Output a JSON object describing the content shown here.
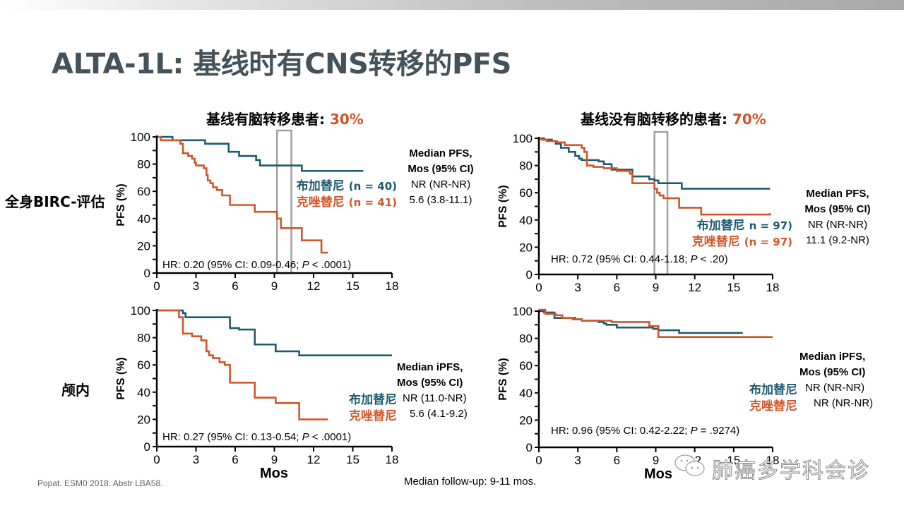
{
  "slide": {
    "title": "ALTA-1L: 基线时有CNS转移的PFS",
    "row_labels": [
      "全身BIRC-评估",
      "颅内"
    ],
    "footer_reference": "Popat. ESM0 2018. Abstr LBA58.",
    "footer_followup": "Median follow-up: 9-11 mos.",
    "watermark": "肺癌多学科会诊",
    "colors": {
      "brigatinib": "#1c5a6e",
      "crizotinib": "#d0562a",
      "highlight_box": "#a0a0a0",
      "title": "#44525c"
    }
  },
  "panels": [
    {
      "title": "基线有脑转移患者: ",
      "title_pct": "30%",
      "median_header": [
        "Median PFS,",
        "Mos (95% CI)"
      ],
      "median_values": [
        "NR (NR-NR)",
        "5.6 (3.8-11.1)"
      ],
      "legend": [
        {
          "name": "布加替尼",
          "n": "(n = 40)"
        },
        {
          "name": "克唑替尼",
          "n": "(n = 41)"
        }
      ],
      "hr_text": {
        "pre": "HR: 0.20 (95% CI: 0.09-0.46; ",
        "p": "P",
        "post": " < .0001)"
      }
    },
    {
      "title": "基线没有脑转移的患者: ",
      "title_pct": "70%",
      "median_header": [
        "Median PFS,",
        "Mos (95% CI)"
      ],
      "median_values": [
        "NR (NR-NR)",
        "11.1 (9.2-NR)"
      ],
      "legend": [
        {
          "name": "布加替尼",
          "n": "n = 97)"
        },
        {
          "name": "克唑替尼",
          "n": "(n = 97)"
        }
      ],
      "hr_text": {
        "pre": "HR: 0.72 (95% CI: 0.44-1.18; ",
        "p": "P",
        "post": " < .20)"
      }
    },
    {
      "title": "",
      "title_pct": "",
      "median_header": [
        "Median iPFS,",
        "Mos (95% CI)"
      ],
      "median_values": [
        "NR (11.0-NR)",
        "5.6 (4.1-9.2)"
      ],
      "legend": [
        {
          "name": "布加替尼",
          "n": ""
        },
        {
          "name": "克唑替尼",
          "n": ""
        }
      ],
      "hr_text": {
        "pre": "HR: 0.27 (95% CI: 0.13-0.54; ",
        "p": "P",
        "post": " < .0001)"
      }
    },
    {
      "title": "",
      "title_pct": "",
      "median_header": [
        "Median iPFS,",
        "Mos (95% CI)"
      ],
      "median_values": [
        "NR (NR-NR)",
        "NR (NR-NR)"
      ],
      "legend": [
        {
          "name": "布加替尼",
          "n": ""
        },
        {
          "name": "克唑替尼",
          "n": ""
        }
      ],
      "hr_text": {
        "pre": "HR: 0.96 (95% CI: 0.42-2.22; ",
        "p": "P",
        "post": " = .9274)"
      }
    }
  ],
  "chart_data": [
    {
      "type": "line",
      "step": true,
      "title": "基线有脑转移患者: 30% — 全身BIRC-评估",
      "xlabel": "",
      "ylabel": "PFS (%)",
      "xlim": [
        0,
        18
      ],
      "ylim": [
        0,
        100
      ],
      "xticks": [
        0,
        3,
        6,
        9,
        12,
        15,
        18
      ],
      "yticks": [
        0,
        20,
        40,
        60,
        80,
        100
      ],
      "highlight_x_range": [
        9.2,
        10.3
      ],
      "series": [
        {
          "name": "布加替尼 (n = 40)",
          "color": "#1c5a6e",
          "x": [
            0,
            1.2,
            3.7,
            5.5,
            6.3,
            7.6,
            7.9,
            8.0,
            11.1,
            15.8
          ],
          "y": [
            100,
            97.5,
            95,
            89,
            86,
            83,
            79,
            79,
            75,
            75
          ]
        },
        {
          "name": "克唑替尼 (n = 41)",
          "color": "#d0562a",
          "x": [
            0,
            0.3,
            1.8,
            2.0,
            2.4,
            2.7,
            2.9,
            3.0,
            3.6,
            3.8,
            3.9,
            4.1,
            4.3,
            4.6,
            5.0,
            5.6,
            7.5,
            9.2,
            9.5,
            11.1,
            12.6,
            13.1
          ],
          "y": [
            100,
            97.5,
            95,
            88,
            86,
            84,
            81,
            79,
            77,
            72,
            68,
            66,
            63,
            61,
            57,
            50,
            45,
            40,
            33,
            24,
            15,
            15
          ]
        }
      ]
    },
    {
      "type": "line",
      "step": true,
      "title": "基线没有脑转移的患者: 70% — 全身BIRC-评估",
      "xlabel": "",
      "ylabel": "PFS (%)",
      "xlim": [
        0,
        18
      ],
      "ylim": [
        0,
        100
      ],
      "xticks": [
        0,
        3,
        6,
        9,
        12,
        15,
        18
      ],
      "yticks": [
        0,
        20,
        40,
        60,
        80,
        100
      ],
      "highlight_x_range": [
        8.9,
        9.9
      ],
      "series": [
        {
          "name": "布加替尼 n = 97)",
          "color": "#1c5a6e",
          "x": [
            0,
            0.4,
            1.0,
            1.3,
            1.7,
            2.3,
            2.8,
            3.1,
            3.3,
            4.6,
            5.0,
            5.6,
            7.2,
            8.5,
            8.9,
            9.2,
            11.0,
            17.8
          ],
          "y": [
            100,
            99,
            98,
            96,
            93,
            90,
            87,
            85,
            84,
            83,
            81,
            77,
            72,
            70,
            69,
            67,
            63,
            63
          ]
        },
        {
          "name": "克唑替尼 (n = 97)",
          "color": "#d0562a",
          "x": [
            0,
            0.2,
            0.6,
            1.4,
            2.0,
            3.0,
            3.3,
            3.5,
            3.7,
            4.2,
            5.0,
            6.0,
            7.0,
            7.2,
            8.6,
            8.9,
            9.1,
            9.3,
            9.6,
            10.8,
            12.5,
            17.8
          ],
          "y": [
            100,
            99,
            98,
            97,
            95,
            95,
            93,
            90,
            80,
            79,
            78,
            76,
            74,
            67,
            67,
            63,
            60,
            58,
            56,
            49,
            44,
            45
          ]
        }
      ]
    },
    {
      "type": "line",
      "step": true,
      "title": "颅内 — 基线有脑转移患者",
      "xlabel": "Mos",
      "ylabel": "PFS (%)",
      "xlim": [
        0,
        18
      ],
      "ylim": [
        0,
        100
      ],
      "xticks": [
        0,
        3,
        6,
        9,
        12,
        15,
        18
      ],
      "yticks": [
        0,
        20,
        40,
        60,
        80,
        100
      ],
      "series": [
        {
          "name": "布加替尼",
          "color": "#1c5a6e",
          "x": [
            0,
            2.0,
            2.2,
            5.6,
            6.3,
            7.5,
            9.1,
            10.9,
            18.0
          ],
          "y": [
            100,
            98,
            95,
            87,
            86,
            75,
            70,
            67,
            67
          ]
        },
        {
          "name": "克唑替尼",
          "color": "#d0562a",
          "x": [
            0,
            1.7,
            2.0,
            2.7,
            3.4,
            3.8,
            4.0,
            4.3,
            4.8,
            5.2,
            5.6,
            7.5,
            9.1,
            10.9,
            13.1
          ],
          "y": [
            100,
            95,
            83,
            81,
            78,
            70,
            67,
            65,
            62,
            60,
            47,
            36,
            32,
            20,
            20
          ]
        }
      ]
    },
    {
      "type": "line",
      "step": true,
      "title": "颅内 — 基线没有脑转移的患者",
      "xlabel": "Mos",
      "ylabel": "PFS (%)",
      "xlim": [
        0,
        18
      ],
      "ylim": [
        0,
        100
      ],
      "xticks": [
        0,
        3,
        6,
        9,
        12,
        15,
        18
      ],
      "yticks": [
        0,
        20,
        40,
        60,
        80,
        100
      ],
      "series": [
        {
          "name": "布加替尼",
          "color": "#1c5a6e",
          "x": [
            0,
            0.4,
            1.2,
            2.8,
            3.3,
            4.6,
            5.0,
            5.2,
            6.0,
            8.8,
            9.2,
            10.8,
            15.7
          ],
          "y": [
            100,
            99,
            95,
            94,
            93,
            92,
            91,
            90,
            88,
            87,
            86,
            84,
            84
          ]
        },
        {
          "name": "克唑替尼",
          "color": "#d0562a",
          "x": [
            0,
            0.5,
            1.3,
            1.8,
            2.6,
            3.3,
            5.0,
            5.6,
            8.5,
            9.2,
            18.0
          ],
          "y": [
            101,
            98,
            97,
            95,
            94,
            93,
            93,
            92,
            89,
            81,
            81
          ]
        }
      ]
    }
  ]
}
